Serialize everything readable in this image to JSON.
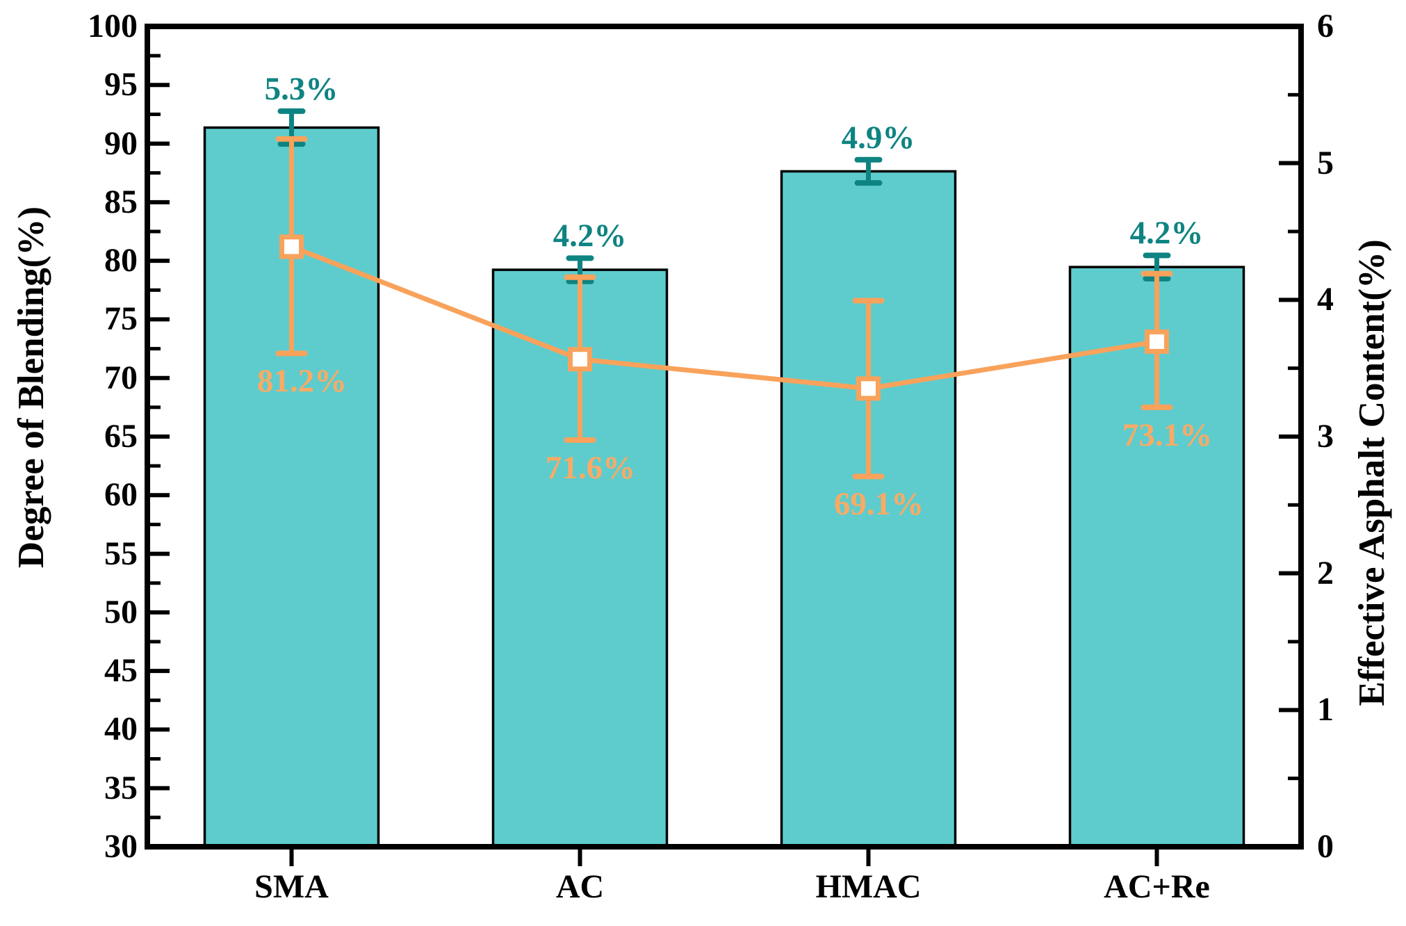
{
  "figure": {
    "background": "#ffffff"
  },
  "chart_data": {
    "type": "bar",
    "subtype": "dual-axis bar + line with error bars",
    "categories": [
      "SMA",
      "AC",
      "HMAC",
      "AC+Re"
    ],
    "bar_series": {
      "name": "Effective Asphalt Content",
      "axis": "right",
      "values": [
        5.26,
        4.22,
        4.94,
        4.24
      ],
      "errors": [
        0.12,
        0.085,
        0.085,
        0.085
      ],
      "point_labels": [
        "5.3%",
        "4.2%",
        "4.9%",
        "4.2%"
      ],
      "bar_fill_color": "#5ecccd",
      "bar_edge_color": "#000000",
      "error_bar_color": "#0e8482",
      "label_color": "#0e8482"
    },
    "line_series": {
      "name": "Degree of Blending",
      "axis": "left",
      "values": [
        81.2,
        71.6,
        69.1,
        73.1
      ],
      "err_up": [
        9.2,
        7.0,
        7.5,
        5.8
      ],
      "err_down": [
        9.1,
        6.9,
        7.5,
        5.6
      ],
      "point_labels": [
        "81.2%",
        "71.6%",
        "69.1%",
        "73.1%"
      ],
      "line_color": "#f9a25b",
      "marker": "open-square",
      "marker_fill": "#ffffff",
      "label_color": "#faaa64"
    },
    "left_axis": {
      "label": "Degree of Blending(%)",
      "min": 30,
      "max": 100,
      "major_step": 5,
      "minor_step": 2.5,
      "ticks": [
        "30",
        "35",
        "40",
        "45",
        "50",
        "55",
        "60",
        "65",
        "70",
        "75",
        "80",
        "85",
        "90",
        "95",
        "100"
      ]
    },
    "right_axis": {
      "label": "Effective Asphalt Content(%)",
      "min": 0,
      "max": 6,
      "major_step": 1,
      "minor_step": 0.5,
      "ticks": [
        "0",
        "1",
        "2",
        "3",
        "4",
        "5",
        "6"
      ]
    },
    "x_axis": {
      "tick_labels": [
        "SMA",
        "AC",
        "HMAC",
        "AC+Re"
      ]
    },
    "grid": "off",
    "legend": "none",
    "frame_color": "#000000"
  }
}
